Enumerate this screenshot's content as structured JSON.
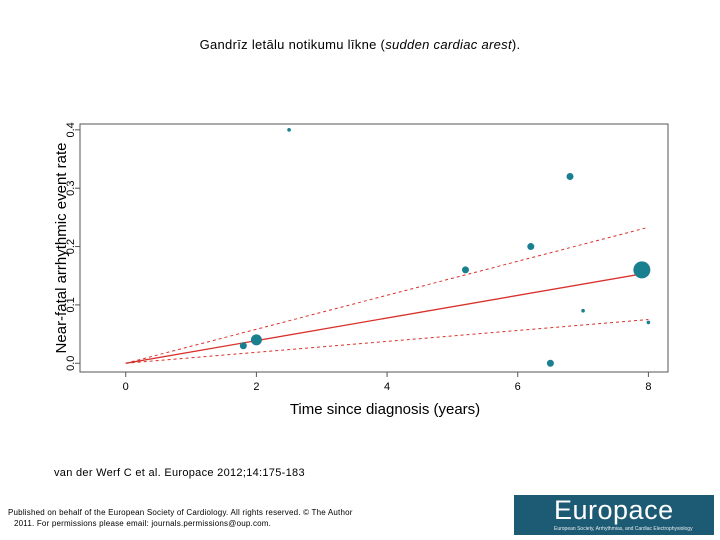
{
  "slide": {
    "title_plain": "Gandrīz letālu notikumu līkne (",
    "title_italic": "sudden cardiac arest",
    "title_end": ").",
    "citation": "van der Werf C et al. Europace 2012;14:175-183",
    "copyright_line1": "Published on behalf of the European Society of Cardiology. All rights reserved. © The Author",
    "copyright_line2": "2011. For permissions please email: journals.permissions@oup.com.",
    "logo_text": "Europace",
    "logo_subtext": "European Society, Arrhythmias, and Cardiac Electrophysiology"
  },
  "chart_data": {
    "type": "scatter",
    "xlabel": "Time since diagnosis (years)",
    "ylabel": "Near-fatal arrhythmic event rate",
    "xlim": [
      -0.7,
      8.3
    ],
    "ylim": [
      -0.015,
      0.41
    ],
    "xticks": [
      0,
      2,
      4,
      6,
      8
    ],
    "yticks": [
      0.0,
      0.1,
      0.2,
      0.3,
      0.4
    ],
    "ytick_labels": [
      "0.0",
      "0.1",
      "0.2",
      "0.3",
      "0.4"
    ],
    "grid": false,
    "colors": {
      "points": "#1a7f8e",
      "fit": "#d9312b"
    },
    "points": [
      {
        "x": 1.8,
        "y": 0.03,
        "weight": 2
      },
      {
        "x": 2.0,
        "y": 0.04,
        "weight": 3
      },
      {
        "x": 2.5,
        "y": 0.4,
        "weight": 1
      },
      {
        "x": 5.2,
        "y": 0.16,
        "weight": 2
      },
      {
        "x": 6.2,
        "y": 0.2,
        "weight": 2
      },
      {
        "x": 6.5,
        "y": 0.0,
        "weight": 2
      },
      {
        "x": 6.8,
        "y": 0.32,
        "weight": 2
      },
      {
        "x": 7.0,
        "y": 0.09,
        "weight": 1
      },
      {
        "x": 7.9,
        "y": 0.16,
        "weight": 4
      },
      {
        "x": 8.0,
        "y": 0.07,
        "weight": 1
      }
    ],
    "fit_line": {
      "x": [
        0,
        8
      ],
      "y": [
        0.0,
        0.155
      ]
    },
    "upper_ci": {
      "x": [
        0,
        8
      ],
      "y": [
        0.0,
        0.233
      ]
    },
    "lower_ci": {
      "x": [
        0,
        8
      ],
      "y": [
        0.0,
        0.075
      ]
    }
  }
}
